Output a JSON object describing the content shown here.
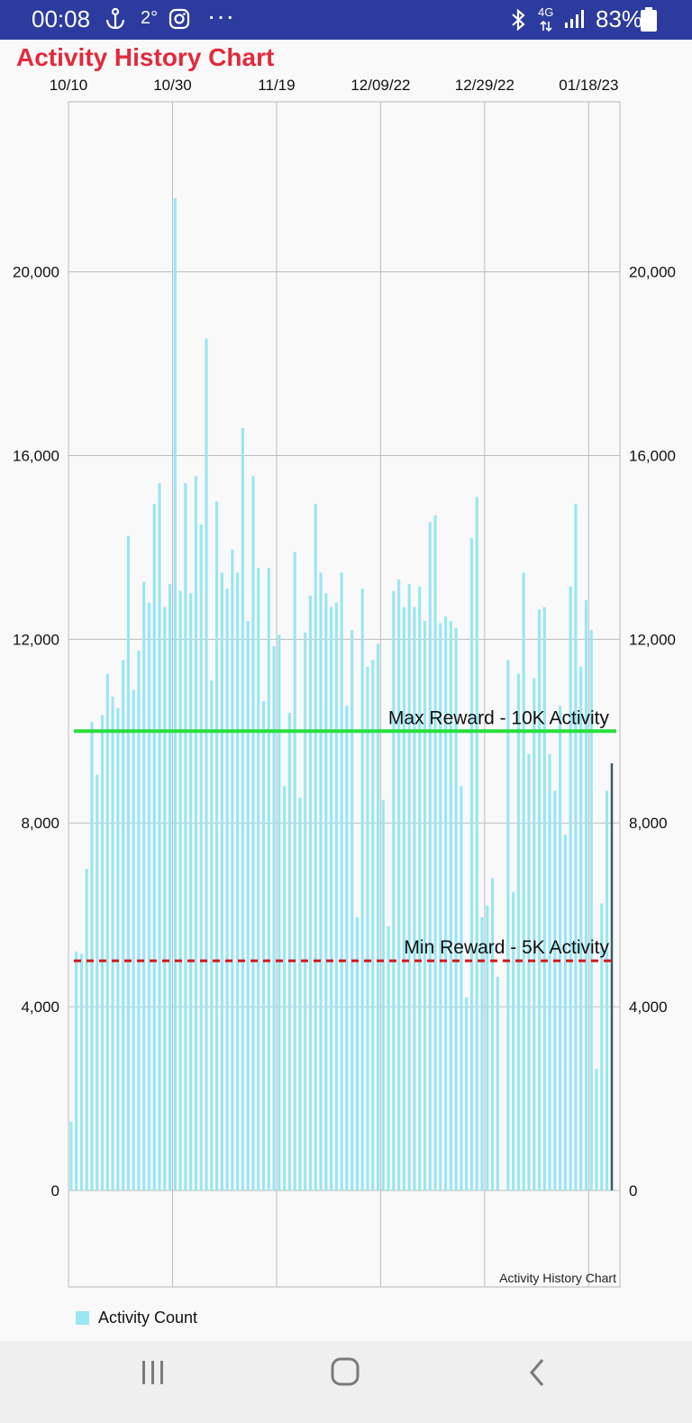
{
  "status_bar": {
    "time": "00:08",
    "temp": "2°",
    "more": "···",
    "network": "4G",
    "battery": "83%"
  },
  "chart_title": "Activity History Chart",
  "chart_data": {
    "type": "bar",
    "x_tick_labels": [
      "10/10",
      "10/30",
      "11/19",
      "12/09/22",
      "12/29/22",
      "01/18/23"
    ],
    "y_ticks": [
      0,
      4000,
      8000,
      12000,
      16000,
      20000
    ],
    "y_tick_labels": [
      "0",
      "4,000",
      "8,000",
      "12,000",
      "16,000",
      "20,000"
    ],
    "ylim": [
      -2100,
      23700
    ],
    "xlim": [
      0,
      106
    ],
    "grid": true,
    "bar_color": "#9ae6f2",
    "highlight_color": "#3d5a66",
    "values": [
      1500,
      5200,
      5150,
      7000,
      10200,
      9050,
      10350,
      11250,
      10750,
      10500,
      11550,
      14250,
      10900,
      11750,
      13250,
      12800,
      14950,
      15400,
      12700,
      13200,
      21600,
      13050,
      15400,
      13000,
      15550,
      14500,
      18550,
      11100,
      15000,
      13450,
      13100,
      13950,
      13450,
      16600,
      12400,
      15550,
      13550,
      10650,
      13550,
      11850,
      12100,
      8800,
      10400,
      13900,
      8550,
      12150,
      12950,
      14950,
      13450,
      13000,
      12700,
      12800,
      13450,
      10550,
      12200,
      5950,
      13100,
      11400,
      11550,
      11900,
      8500,
      5750,
      13050,
      13300,
      12700,
      13200,
      12700,
      13150,
      12400,
      14550,
      14700,
      12350,
      12500,
      12400,
      12250,
      8800,
      4200,
      14200,
      15100,
      5950,
      6200,
      6800,
      4650,
      0,
      11550,
      6500,
      11250,
      13450,
      9500,
      11150,
      12650,
      12700,
      9500,
      8700,
      10550,
      7750,
      13150,
      14950,
      11400,
      12850,
      12200,
      2650,
      6250,
      8700,
      9300
    ],
    "highlight_index": 104,
    "reference_lines": [
      {
        "label": "Max Reward - 10K Activity",
        "value": 10000,
        "color": "#27e03d",
        "style": "solid"
      },
      {
        "label": "Min Reward - 5K Activity",
        "value": 5000,
        "color": "#d6161c",
        "style": "dashed"
      }
    ],
    "watermark": "Activity History Chart",
    "legend": [
      {
        "label": "Activity Count",
        "color": "#9ae6f2"
      }
    ],
    "legend_position": "bottom-left"
  },
  "nav_bar": {
    "recents": "recent-apps",
    "home": "home",
    "back": "back"
  }
}
